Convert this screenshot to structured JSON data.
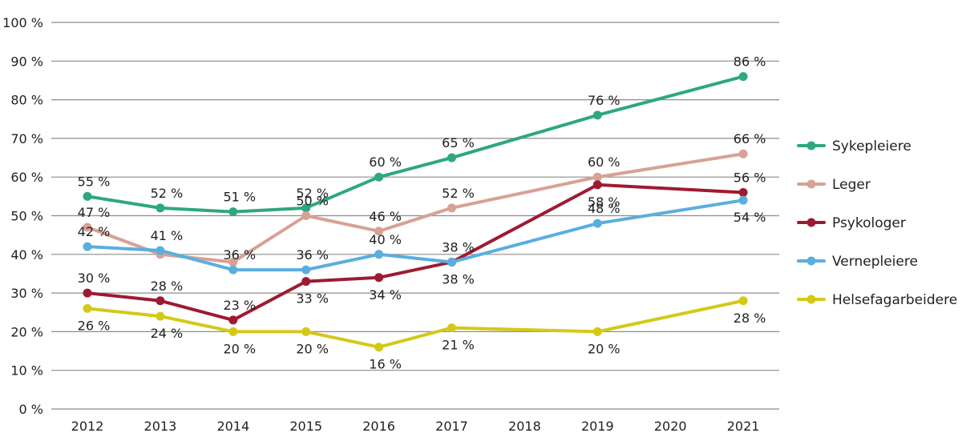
{
  "chart_data": {
    "type": "line",
    "title": "",
    "xlabel": "",
    "ylabel": "",
    "ylim": [
      0,
      100
    ],
    "yticks": [
      0,
      10,
      20,
      30,
      40,
      50,
      60,
      70,
      80,
      90,
      100
    ],
    "ytick_labels": [
      "0 %",
      "10 %",
      "20 %",
      "30 %",
      "40 %",
      "50 %",
      "60 %",
      "70 %",
      "80 %",
      "90 %",
      "100 %"
    ],
    "x": [
      "2012",
      "2013",
      "2014",
      "2015",
      "2016",
      "2017",
      "2018",
      "2019",
      "2020",
      "2021"
    ],
    "grid": true,
    "legend_position": "right",
    "value_suffix": " %",
    "series": [
      {
        "name": "Sykepleiere",
        "color": "#2ea87c",
        "values": [
          55,
          52,
          51,
          52,
          60,
          65,
          null,
          76,
          null,
          86
        ],
        "label_position": [
          "above",
          "above",
          "above",
          "above",
          "above",
          "above",
          null,
          "above",
          null,
          "above"
        ],
        "labels": [
          "55 %",
          "52 %",
          "51 %",
          "52 %",
          "60 %",
          "65 %",
          null,
          "76 %",
          null,
          "86 %"
        ]
      },
      {
        "name": "Leger",
        "color": "#d7a195",
        "values": [
          47,
          40,
          38,
          50,
          46,
          52,
          null,
          60,
          null,
          66
        ],
        "label_position": [
          "above",
          null,
          null,
          "above",
          "above",
          "above",
          null,
          "above",
          null,
          "above"
        ],
        "labels": [
          "47 %",
          null,
          null,
          "50 %",
          "46 %",
          "52 %",
          null,
          "60 %",
          null,
          "66 %"
        ]
      },
      {
        "name": "Psykologer",
        "color": "#9e1a32",
        "values": [
          30,
          28,
          23,
          33,
          34,
          38,
          null,
          58,
          null,
          56
        ],
        "label_position": [
          "above",
          "above",
          "above",
          "below",
          "below",
          "above",
          null,
          "below",
          null,
          "above"
        ],
        "labels": [
          "30 %",
          "28 %",
          "23 %",
          "33 %",
          "34 %",
          "38 %",
          null,
          "58 %",
          null,
          "56 %"
        ]
      },
      {
        "name": "Vernepleiere",
        "color": "#5aaedf",
        "values": [
          42,
          41,
          36,
          36,
          40,
          38,
          null,
          48,
          null,
          54
        ],
        "label_position": [
          "above",
          "above",
          "above",
          "above",
          "above",
          "below",
          null,
          "above",
          null,
          "below"
        ],
        "labels": [
          "42 %",
          "41 %",
          "36 %",
          "36 %",
          "40 %",
          "38 %",
          null,
          "48 %",
          null,
          "54 %"
        ]
      },
      {
        "name": "Helsefagarbeidere",
        "color": "#d4c916",
        "values": [
          26,
          24,
          20,
          20,
          16,
          21,
          null,
          20,
          null,
          28
        ],
        "label_position": [
          "below",
          "below",
          "below",
          "below",
          "below",
          "below",
          null,
          "below",
          null,
          "below"
        ],
        "labels": [
          "26 %",
          "24 %",
          "20 %",
          "20 %",
          "16 %",
          "21 %",
          null,
          "20 %",
          null,
          "28 %"
        ]
      }
    ]
  }
}
